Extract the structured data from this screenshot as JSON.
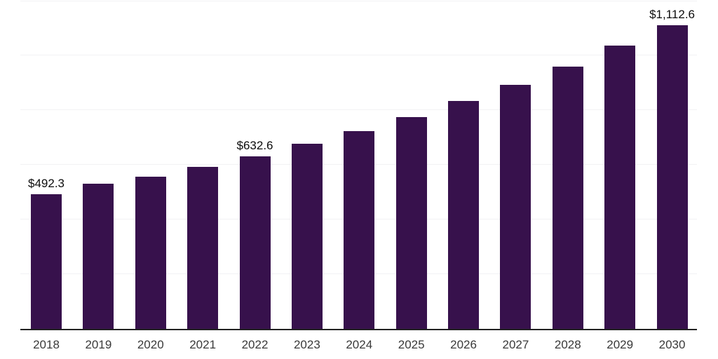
{
  "chart_data": {
    "type": "bar",
    "title": "",
    "xlabel": "",
    "ylabel": "",
    "categories": [
      "2018",
      "2019",
      "2020",
      "2021",
      "2022",
      "2023",
      "2024",
      "2025",
      "2026",
      "2027",
      "2028",
      "2029",
      "2030"
    ],
    "values": [
      492.3,
      530.9,
      558.0,
      592.8,
      632.6,
      676.9,
      723.9,
      775.6,
      833.9,
      893.1,
      961.0,
      1035.8,
      1112.6
    ],
    "data_labels": {
      "2018": "$492.3",
      "2022": "$632.6",
      "2030": "$1,112.6"
    },
    "ylim": [
      0,
      1200
    ],
    "gridline_interval": 200,
    "grid": true,
    "legend": false,
    "colors": {
      "bar": "#37114c",
      "gridline": "#f2f2f4",
      "axis_line": "#222222",
      "x_tick_label": "#3a3a3a",
      "data_label": "#0d0d0d"
    }
  }
}
